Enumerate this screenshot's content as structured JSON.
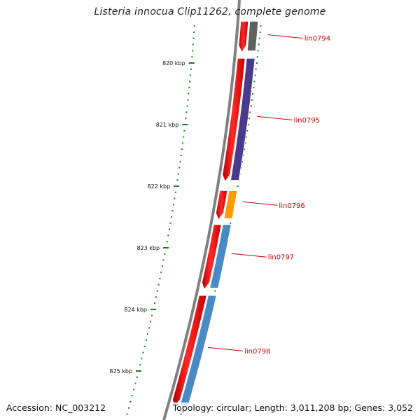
{
  "title": "Listeria innocua Clip11262, complete genome",
  "footer": {
    "accession": "Accession: NC_003212",
    "summary": "Topology: circular; Length: 3,011,208 bp; Genes: 3,052"
  },
  "ruler": {
    "ticks": [
      {
        "label": "820 kbp",
        "kb": 820
      },
      {
        "label": "821 kbp",
        "kb": 821
      },
      {
        "label": "822 kbp",
        "kb": 822
      },
      {
        "label": "823 kbp",
        "kb": 823
      },
      {
        "label": "824 kbp",
        "kb": 824
      },
      {
        "label": "825 kbp",
        "kb": 825
      }
    ],
    "tick_color": "#1a7a1a"
  },
  "genes": [
    {
      "label": "lin0794",
      "start_kb": 819.3,
      "end_kb": 819.85,
      "cds_color": "#ff0000",
      "class_color": "#606060"
    },
    {
      "label": "lin0795",
      "start_kb": 819.9,
      "end_kb": 821.95,
      "cds_color": "#ff0000",
      "class_color": "#4b3a8c"
    },
    {
      "label": "lin0796",
      "start_kb": 822.05,
      "end_kb": 822.57,
      "cds_color": "#ff0000",
      "class_color": "#ff9900"
    },
    {
      "label": "lin0797",
      "start_kb": 822.6,
      "end_kb": 823.7,
      "cds_color": "#ff0000",
      "class_color": "#4a8ac4"
    },
    {
      "label": "lin0798",
      "start_kb": 823.75,
      "end_kb": 825.6,
      "cds_color": "#ff0000",
      "class_color": "#4a8ac4"
    }
  ],
  "backbone_color": "#808080"
}
